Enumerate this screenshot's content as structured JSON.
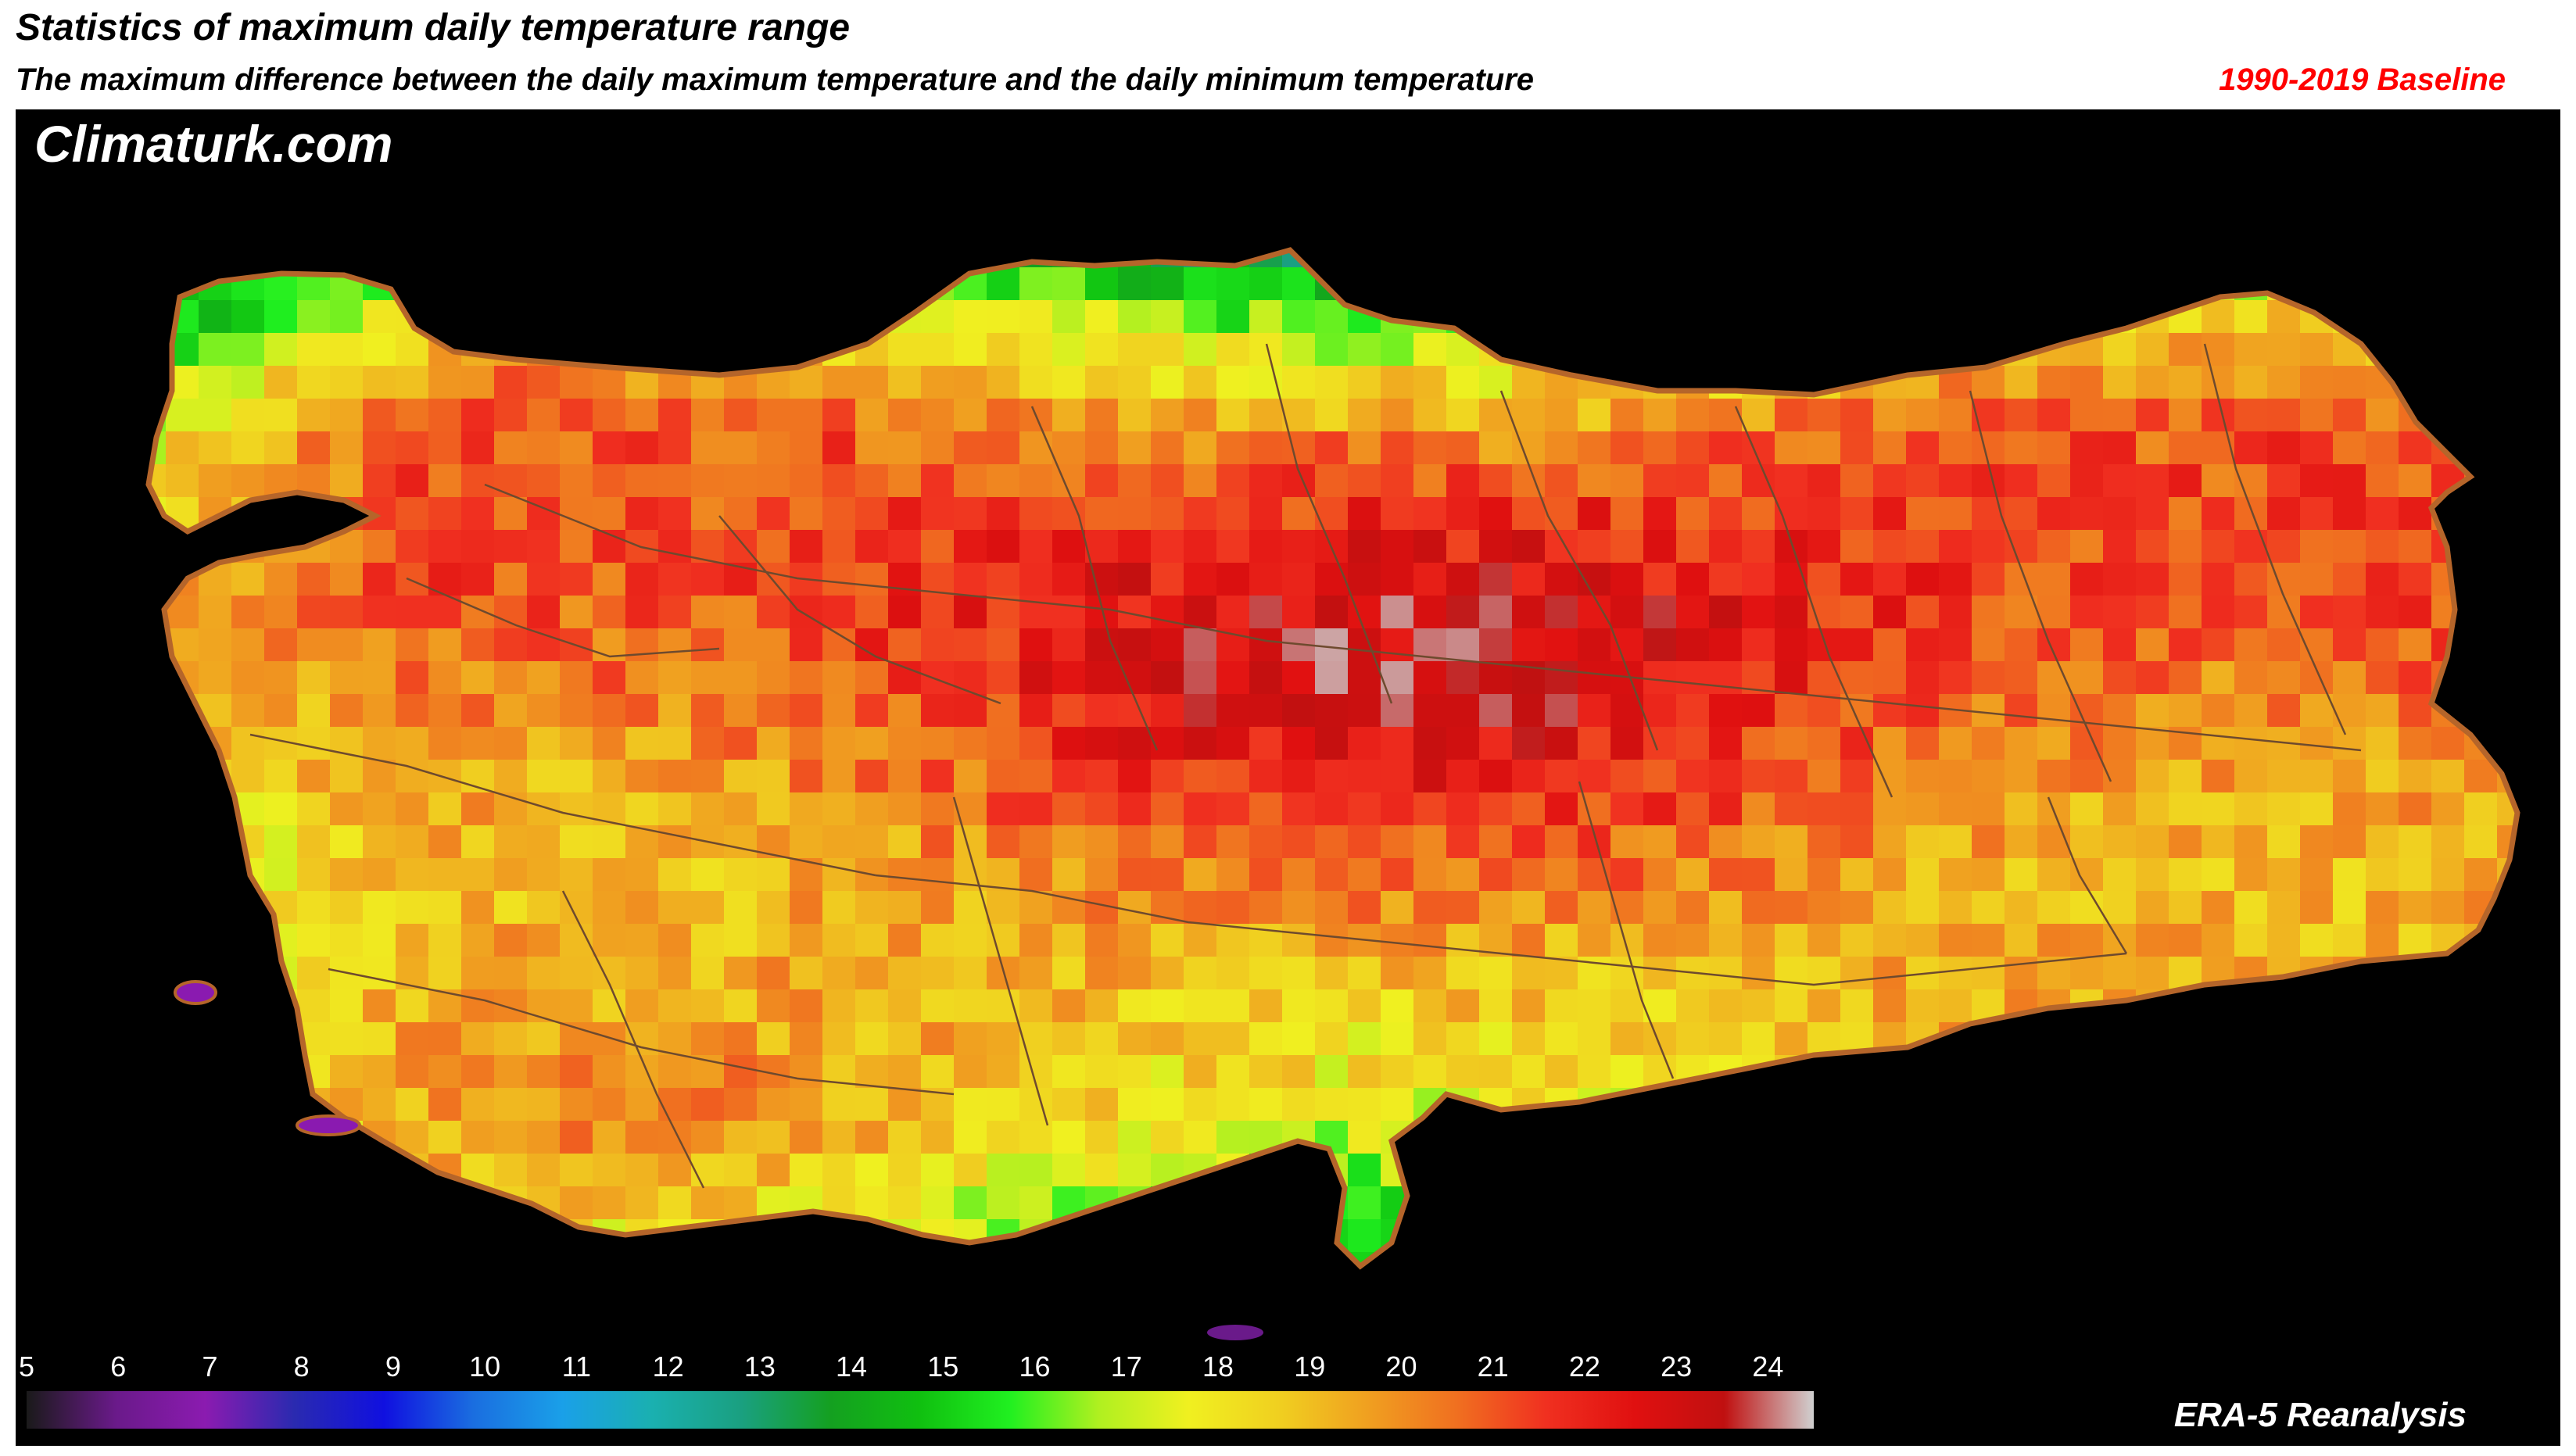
{
  "header": {
    "title": "Statistics of maximum daily temperature range",
    "subtitle": "The maximum difference between the daily maximum temperature and the daily minimum temperature",
    "baseline": "1990-2019 Baseline"
  },
  "map": {
    "brand": "Climaturk.com",
    "source": "ERA-5 Reanalysis",
    "background": "#000000",
    "border_color": "#b5652a",
    "province_border_color": "#6e4a2e"
  },
  "colorbar": {
    "ticks": [
      "5",
      "6",
      "7",
      "8",
      "9",
      "10",
      "11",
      "12",
      "13",
      "14",
      "15",
      "16",
      "17",
      "18",
      "19",
      "20",
      "21",
      "22",
      "23",
      "24"
    ],
    "min": 5,
    "max": 24.5,
    "stops": [
      "#1a1a1a",
      "#6a1a8a",
      "#8b1bb0",
      "#2a2ab0",
      "#1010e0",
      "#1a6ee0",
      "#1aa0e8",
      "#1ab0b0",
      "#1aa080",
      "#14a020",
      "#10c010",
      "#20f020",
      "#b0f020",
      "#f0f020",
      "#f0d020",
      "#f0a020",
      "#f07020",
      "#f03020",
      "#e01010",
      "#c01010",
      "#d0d0d0"
    ]
  }
}
